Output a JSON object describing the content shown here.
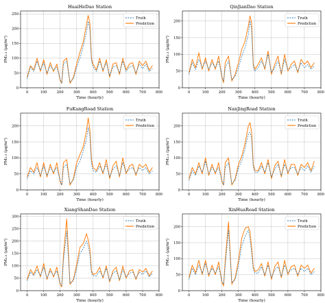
{
  "figure": {
    "xlabel": "Time (hourly)",
    "ylabel": "PM₂.₅ (μg/m³)"
  },
  "legend": {
    "truth": "Truth",
    "prediction": "Prediction"
  },
  "colors": {
    "truth": "#1f77b4",
    "prediction": "#ff7f0e",
    "grid": "#b0b0b0",
    "axis": "#000000"
  },
  "chart_data": [
    {
      "type": "line",
      "title": "HuaiHeDao Station",
      "xlabel": "Time (hourly)",
      "ylabel": "PM₂.₅ (μg/m³)",
      "xlim": [
        -40,
        800
      ],
      "ylim": [
        0,
        260
      ],
      "xticks": [
        0,
        100,
        200,
        300,
        400,
        500,
        600,
        700,
        800
      ],
      "yticks": [
        0,
        50,
        100,
        150,
        200,
        250
      ],
      "grid": true,
      "legend_position": "top-right",
      "x": [
        0,
        20,
        40,
        60,
        80,
        100,
        120,
        140,
        160,
        180,
        200,
        210,
        220,
        240,
        260,
        280,
        300,
        320,
        340,
        360,
        370,
        380,
        390,
        400,
        420,
        440,
        460,
        480,
        500,
        520,
        540,
        560,
        580,
        600,
        620,
        640,
        660,
        680,
        700,
        720,
        740,
        760
      ],
      "series": [
        {
          "name": "Truth",
          "style": "dashed",
          "values": [
            30,
            70,
            55,
            90,
            60,
            85,
            50,
            75,
            60,
            70,
            30,
            15,
            80,
            90,
            20,
            30,
            70,
            100,
            140,
            190,
            225,
            200,
            90,
            70,
            55,
            90,
            60,
            85,
            40,
            70,
            75,
            50,
            90,
            55,
            70,
            75,
            50,
            80,
            65,
            80,
            55,
            65
          ]
        },
        {
          "name": "Prediction",
          "style": "solid",
          "values": [
            35,
            75,
            60,
            100,
            55,
            95,
            45,
            85,
            55,
            80,
            25,
            15,
            90,
            100,
            15,
            35,
            80,
            120,
            155,
            215,
            245,
            220,
            100,
            80,
            60,
            100,
            55,
            95,
            35,
            80,
            85,
            45,
            100,
            60,
            80,
            85,
            45,
            90,
            75,
            90,
            60,
            75
          ]
        }
      ]
    },
    {
      "type": "line",
      "title": "QinJianDao Station",
      "xlabel": "Time (hourly)",
      "ylabel": "PM₂.₅ (μg/m³)",
      "xlim": [
        -40,
        800
      ],
      "ylim": [
        0,
        230
      ],
      "xticks": [
        0,
        100,
        200,
        300,
        400,
        500,
        600,
        700,
        800
      ],
      "yticks": [
        0,
        50,
        100,
        150,
        200
      ],
      "grid": true,
      "legend_position": "top-right",
      "x": [
        0,
        20,
        40,
        60,
        80,
        100,
        120,
        140,
        160,
        180,
        200,
        210,
        220,
        240,
        260,
        280,
        300,
        320,
        340,
        360,
        370,
        380,
        390,
        400,
        420,
        440,
        460,
        480,
        500,
        520,
        540,
        560,
        580,
        600,
        620,
        640,
        660,
        680,
        700,
        720,
        740,
        760
      ],
      "series": [
        {
          "name": "Truth",
          "style": "dashed",
          "values": [
            40,
            75,
            55,
            85,
            60,
            80,
            55,
            75,
            60,
            80,
            35,
            20,
            60,
            80,
            25,
            35,
            60,
            95,
            120,
            160,
            200,
            175,
            60,
            50,
            60,
            80,
            60,
            100,
            45,
            60,
            80,
            45,
            85,
            55,
            60,
            70,
            50,
            75,
            60,
            70,
            55,
            65
          ]
        },
        {
          "name": "Prediction",
          "style": "solid",
          "values": [
            45,
            85,
            60,
            105,
            55,
            90,
            50,
            85,
            55,
            95,
            30,
            15,
            75,
            95,
            20,
            40,
            75,
            115,
            140,
            185,
            215,
            195,
            70,
            55,
            70,
            90,
            55,
            110,
            40,
            70,
            95,
            40,
            100,
            50,
            70,
            80,
            45,
            85,
            70,
            80,
            60,
            75
          ]
        }
      ]
    },
    {
      "type": "line",
      "title": "FuKangRoad Station",
      "xlabel": "Time (hourly)",
      "ylabel": "PM₂.₅ (μg/m³)",
      "xlim": [
        -40,
        800
      ],
      "ylim": [
        0,
        240
      ],
      "xticks": [
        0,
        100,
        200,
        300,
        400,
        500,
        600,
        700,
        800
      ],
      "yticks": [
        0,
        50,
        100,
        150,
        200
      ],
      "grid": true,
      "legend_position": "top-right",
      "x": [
        0,
        20,
        40,
        60,
        80,
        100,
        120,
        140,
        160,
        180,
        200,
        210,
        220,
        240,
        260,
        280,
        300,
        320,
        340,
        360,
        370,
        380,
        390,
        400,
        420,
        440,
        460,
        480,
        500,
        520,
        540,
        560,
        580,
        600,
        620,
        640,
        660,
        680,
        700,
        720,
        740,
        760
      ],
      "series": [
        {
          "name": "Truth",
          "style": "dashed",
          "values": [
            35,
            60,
            50,
            70,
            45,
            75,
            45,
            70,
            55,
            70,
            30,
            15,
            70,
            80,
            20,
            30,
            70,
            90,
            120,
            160,
            195,
            170,
            80,
            60,
            55,
            75,
            55,
            80,
            40,
            65,
            75,
            45,
            85,
            55,
            65,
            70,
            50,
            70,
            60,
            70,
            50,
            60
          ]
        },
        {
          "name": "Prediction",
          "style": "solid",
          "values": [
            40,
            70,
            55,
            85,
            40,
            85,
            40,
            80,
            50,
            85,
            25,
            15,
            85,
            95,
            15,
            35,
            85,
            110,
            135,
            185,
            225,
            190,
            95,
            70,
            60,
            85,
            50,
            95,
            35,
            75,
            90,
            40,
            100,
            50,
            75,
            80,
            45,
            80,
            70,
            80,
            55,
            70
          ]
        }
      ]
    },
    {
      "type": "line",
      "title": "NanJingRoad Station",
      "xlabel": "Time (hourly)",
      "ylabel": "PM₂.₅ (μg/m³)",
      "xlim": [
        -40,
        800
      ],
      "ylim": [
        0,
        240
      ],
      "xticks": [
        0,
        100,
        200,
        300,
        400,
        500,
        600,
        700,
        800
      ],
      "yticks": [
        0,
        50,
        100,
        150,
        200
      ],
      "grid": true,
      "legend_position": "top-right",
      "x": [
        0,
        20,
        40,
        60,
        80,
        100,
        120,
        140,
        160,
        180,
        200,
        210,
        220,
        240,
        260,
        280,
        300,
        320,
        340,
        360,
        370,
        380,
        390,
        400,
        420,
        440,
        460,
        480,
        500,
        520,
        540,
        560,
        580,
        600,
        620,
        640,
        660,
        680,
        700,
        720,
        740,
        760
      ],
      "series": [
        {
          "name": "Truth",
          "style": "dashed",
          "values": [
            30,
            60,
            45,
            75,
            55,
            90,
            50,
            70,
            55,
            70,
            30,
            15,
            70,
            85,
            20,
            30,
            70,
            90,
            130,
            175,
            180,
            160,
            70,
            55,
            55,
            75,
            55,
            85,
            40,
            65,
            80,
            45,
            80,
            55,
            70,
            70,
            50,
            70,
            60,
            75,
            55,
            75
          ]
        },
        {
          "name": "Prediction",
          "style": "solid",
          "values": [
            35,
            70,
            50,
            85,
            50,
            100,
            45,
            80,
            50,
            85,
            25,
            15,
            85,
            100,
            15,
            35,
            80,
            105,
            145,
            200,
            210,
            180,
            80,
            60,
            60,
            85,
            50,
            95,
            35,
            75,
            90,
            40,
            95,
            50,
            80,
            80,
            45,
            80,
            70,
            85,
            60,
            90
          ]
        }
      ]
    },
    {
      "type": "line",
      "title": "XiangShanDao Station",
      "xlabel": "Time (hourly)",
      "ylabel": "PM₂.₅ (μg/m³)",
      "xlim": [
        -40,
        800
      ],
      "ylim": [
        0,
        310
      ],
      "xticks": [
        0,
        100,
        200,
        300,
        400,
        500,
        600,
        700,
        800
      ],
      "yticks": [
        0,
        50,
        100,
        150,
        200,
        250,
        300
      ],
      "grid": true,
      "legend_position": "top-right",
      "x": [
        0,
        20,
        40,
        60,
        80,
        100,
        120,
        140,
        160,
        180,
        200,
        210,
        220,
        240,
        260,
        280,
        300,
        320,
        340,
        360,
        370,
        380,
        390,
        400,
        420,
        440,
        460,
        480,
        500,
        520,
        540,
        560,
        580,
        600,
        620,
        640,
        660,
        680,
        700,
        720,
        740,
        760
      ],
      "series": [
        {
          "name": "Truth",
          "style": "dashed",
          "values": [
            40,
            75,
            60,
            85,
            60,
            95,
            50,
            80,
            60,
            80,
            30,
            20,
            120,
            240,
            30,
            40,
            90,
            150,
            170,
            200,
            180,
            150,
            70,
            60,
            60,
            80,
            55,
            90,
            40,
            70,
            80,
            45,
            85,
            55,
            70,
            75,
            50,
            75,
            65,
            80,
            55,
            70
          ]
        },
        {
          "name": "Prediction",
          "style": "solid",
          "values": [
            45,
            85,
            65,
            100,
            55,
            110,
            45,
            90,
            55,
            95,
            25,
            15,
            140,
            290,
            25,
            45,
            105,
            175,
            190,
            230,
            205,
            170,
            80,
            65,
            70,
            95,
            50,
            100,
            35,
            80,
            95,
            40,
            100,
            50,
            80,
            85,
            45,
            85,
            75,
            90,
            60,
            80
          ]
        }
      ]
    },
    {
      "type": "line",
      "title": "XinHuaRoad Station",
      "xlabel": "Time (hourly)",
      "ylabel": "PM₂.₅ (μg/m³)",
      "xlim": [
        -40,
        800
      ],
      "ylim": [
        0,
        240
      ],
      "xticks": [
        0,
        100,
        200,
        300,
        400,
        500,
        600,
        700,
        800
      ],
      "yticks": [
        0,
        50,
        100,
        150,
        200
      ],
      "grid": true,
      "legend_position": "top-right",
      "x": [
        0,
        20,
        40,
        60,
        80,
        100,
        120,
        140,
        160,
        180,
        200,
        210,
        220,
        240,
        260,
        280,
        300,
        320,
        340,
        360,
        370,
        380,
        390,
        400,
        420,
        440,
        460,
        480,
        500,
        520,
        540,
        560,
        580,
        600,
        620,
        640,
        660,
        680,
        700,
        720,
        740,
        760
      ],
      "series": [
        {
          "name": "Truth",
          "style": "dashed",
          "values": [
            35,
            70,
            50,
            80,
            55,
            85,
            50,
            70,
            55,
            75,
            30,
            20,
            80,
            190,
            25,
            35,
            80,
            140,
            170,
            190,
            160,
            120,
            65,
            55,
            55,
            75,
            50,
            80,
            40,
            65,
            75,
            45,
            80,
            55,
            65,
            70,
            50,
            70,
            60,
            70,
            50,
            60
          ]
        },
        {
          "name": "Prediction",
          "style": "solid",
          "values": [
            40,
            80,
            55,
            95,
            50,
            95,
            45,
            80,
            50,
            90,
            25,
            15,
            95,
            215,
            20,
            40,
            95,
            165,
            195,
            200,
            185,
            135,
            75,
            60,
            65,
            85,
            45,
            90,
            35,
            75,
            90,
            40,
            95,
            50,
            75,
            80,
            45,
            80,
            70,
            80,
            55,
            70
          ]
        }
      ]
    }
  ]
}
